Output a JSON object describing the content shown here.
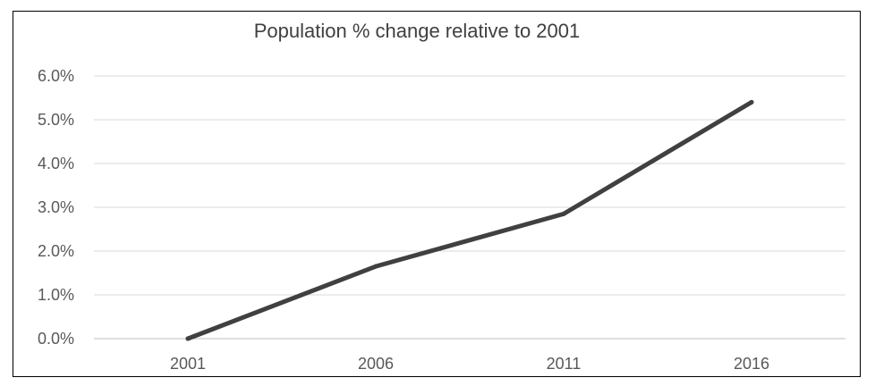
{
  "chart_data": {
    "type": "line",
    "title": "Population % change relative to 2001",
    "xlabel": "",
    "ylabel": "",
    "categories": [
      "2001",
      "2006",
      "2011",
      "2016"
    ],
    "series": [
      {
        "values": [
          0.0,
          1.65,
          2.85,
          5.4
        ],
        "color": "#404040"
      }
    ],
    "ylim": [
      0,
      6
    ],
    "yticks": [
      0,
      1,
      2,
      3,
      4,
      5,
      6
    ],
    "ytick_labels": [
      "0.0%",
      "1.0%",
      "2.0%",
      "3.0%",
      "4.0%",
      "5.0%",
      "6.0%"
    ],
    "grid": true,
    "legend": "none"
  }
}
